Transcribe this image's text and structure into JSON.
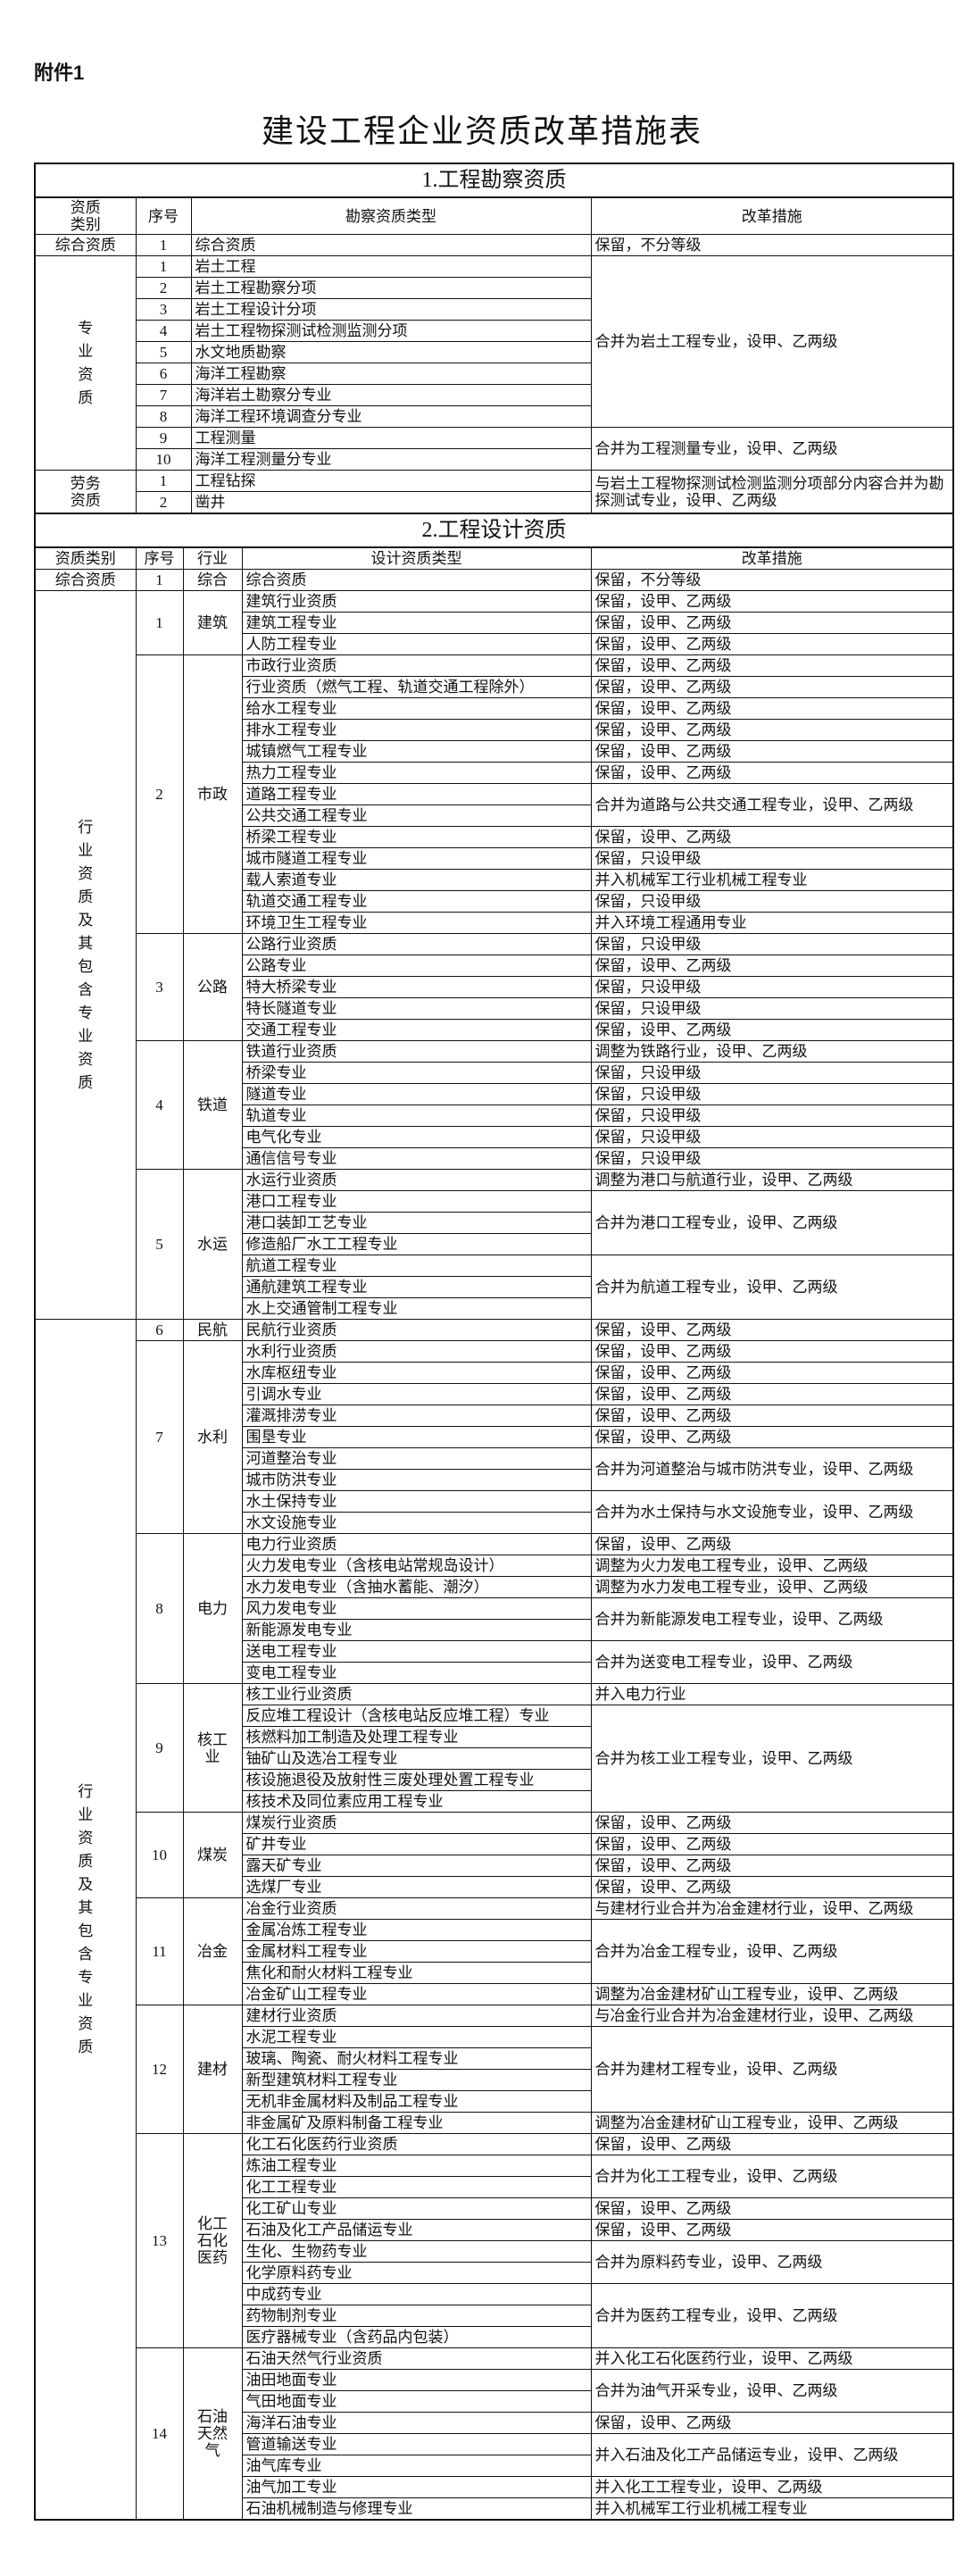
{
  "attachment": "附件1",
  "title": "建设工程企业资质改革措施表",
  "survey": {
    "title": "1.工程勘察资质",
    "headers": [
      "资质类别",
      "序号",
      "勘察资质类型",
      "改革措施"
    ],
    "groups": [
      {
        "category": "综合资质",
        "blocks": [
          {
            "measure": "保留，不分等级",
            "items": [
              {
                "no": 1,
                "type": "综合资质"
              }
            ]
          }
        ]
      },
      {
        "category": "专业资质",
        "blocks": [
          {
            "measure": "合并为岩土工程专业，设甲、乙两级",
            "items": [
              {
                "no": 1,
                "type": "岩土工程"
              },
              {
                "no": 2,
                "type": "岩土工程勘察分项"
              },
              {
                "no": 3,
                "type": "岩土工程设计分项"
              },
              {
                "no": 4,
                "type": "岩土工程物探测试检测监测分项"
              },
              {
                "no": 5,
                "type": "水文地质勘察"
              },
              {
                "no": 6,
                "type": "海洋工程勘察"
              },
              {
                "no": 7,
                "type": "海洋岩土勘察分专业"
              },
              {
                "no": 8,
                "type": "海洋工程环境调查分专业"
              }
            ]
          },
          {
            "measure": "合并为工程测量专业，设甲、乙两级",
            "items": [
              {
                "no": 9,
                "type": "工程测量"
              },
              {
                "no": 10,
                "type": "海洋工程测量分专业"
              }
            ]
          }
        ]
      },
      {
        "category": "劳务资质",
        "blocks": [
          {
            "measure": "与岩土工程物探测试检测监测分项部分内容合并为勘探测试专业，设甲、乙两级",
            "items": [
              {
                "no": 1,
                "type": "工程钻探"
              },
              {
                "no": 2,
                "type": "凿井"
              }
            ]
          }
        ]
      }
    ]
  },
  "design": {
    "title": "2.工程设计资质",
    "headers": [
      "资质类别",
      "序号",
      "行业",
      "设计资质类型",
      "改革措施"
    ],
    "groups": [
      {
        "category": "综合资质",
        "industries": [
          {
            "no": 1,
            "name": "综合",
            "blocks": [
              {
                "measure": "保留，不分等级",
                "types": [
                  "综合资质"
                ]
              }
            ]
          }
        ]
      },
      {
        "category": "行业资质及其包含专业资质",
        "industries": [
          {
            "no": 1,
            "name": "建筑",
            "blocks": [
              {
                "measure": "保留，设甲、乙两级",
                "types": [
                  "建筑行业资质"
                ]
              },
              {
                "measure": "保留，设甲、乙两级",
                "types": [
                  "建筑工程专业"
                ]
              },
              {
                "measure": "保留，设甲、乙两级",
                "types": [
                  "人防工程专业"
                ]
              }
            ]
          },
          {
            "no": 2,
            "name": "市政",
            "blocks": [
              {
                "measure": "保留，设甲、乙两级",
                "types": [
                  "市政行业资质"
                ]
              },
              {
                "measure": "保留，设甲、乙两级",
                "types": [
                  "行业资质（燃气工程、轨道交通工程除外）"
                ]
              },
              {
                "measure": "保留，设甲、乙两级",
                "types": [
                  "给水工程专业"
                ]
              },
              {
                "measure": "保留，设甲、乙两级",
                "types": [
                  "排水工程专业"
                ]
              },
              {
                "measure": "保留，设甲、乙两级",
                "types": [
                  "城镇燃气工程专业"
                ]
              },
              {
                "measure": "保留，设甲、乙两级",
                "types": [
                  "热力工程专业"
                ]
              },
              {
                "measure": "合并为道路与公共交通工程专业，设甲、乙两级",
                "types": [
                  "道路工程专业",
                  "公共交通工程专业"
                ]
              },
              {
                "measure": "保留，设甲、乙两级",
                "types": [
                  "桥梁工程专业"
                ]
              },
              {
                "measure": "保留，只设甲级",
                "types": [
                  "城市隧道工程专业"
                ]
              },
              {
                "measure": "并入机械军工行业机械工程专业",
                "types": [
                  "载人索道专业"
                ]
              },
              {
                "measure": "保留，只设甲级",
                "types": [
                  "轨道交通工程专业"
                ]
              },
              {
                "measure": "并入环境工程通用专业",
                "types": [
                  "环境卫生工程专业"
                ]
              }
            ]
          },
          {
            "no": 3,
            "name": "公路",
            "blocks": [
              {
                "measure": "保留，只设甲级",
                "types": [
                  "公路行业资质"
                ]
              },
              {
                "measure": "保留，设甲、乙两级",
                "types": [
                  "公路专业"
                ]
              },
              {
                "measure": "保留，只设甲级",
                "types": [
                  "特大桥梁专业"
                ]
              },
              {
                "measure": "保留，只设甲级",
                "types": [
                  "特长隧道专业"
                ]
              },
              {
                "measure": "保留，设甲、乙两级",
                "types": [
                  "交通工程专业"
                ]
              }
            ]
          },
          {
            "no": 4,
            "name": "铁道",
            "blocks": [
              {
                "measure": "调整为铁路行业，设甲、乙两级",
                "types": [
                  "铁道行业资质"
                ]
              },
              {
                "measure": "保留，只设甲级",
                "types": [
                  "桥梁专业"
                ]
              },
              {
                "measure": "保留，只设甲级",
                "types": [
                  "隧道专业"
                ]
              },
              {
                "measure": "保留，只设甲级",
                "types": [
                  "轨道专业"
                ]
              },
              {
                "measure": "保留，只设甲级",
                "types": [
                  "电气化专业"
                ]
              },
              {
                "measure": "保留，只设甲级",
                "types": [
                  "通信信号专业"
                ]
              }
            ]
          },
          {
            "no": 5,
            "name": "水运",
            "blocks": [
              {
                "measure": "调整为港口与航道行业，设甲、乙两级",
                "types": [
                  "水运行业资质"
                ]
              },
              {
                "measure": "合并为港口工程专业，设甲、乙两级",
                "types": [
                  "港口工程专业",
                  "港口装卸工艺专业",
                  "修造船厂水工工程专业"
                ]
              },
              {
                "measure": "合并为航道工程专业，设甲、乙两级",
                "types": [
                  "航道工程专业",
                  "通航建筑工程专业",
                  "水上交通管制工程专业"
                ]
              }
            ]
          }
        ]
      },
      {
        "category": "行业资质及其包含专业资质",
        "industries": [
          {
            "no": 6,
            "name": "民航",
            "blocks": [
              {
                "measure": "保留，设甲、乙两级",
                "types": [
                  "民航行业资质"
                ]
              }
            ]
          },
          {
            "no": 7,
            "name": "水利",
            "blocks": [
              {
                "measure": "保留，设甲、乙两级",
                "types": [
                  "水利行业资质"
                ]
              },
              {
                "measure": "保留，设甲、乙两级",
                "types": [
                  "水库枢纽专业"
                ]
              },
              {
                "measure": "保留，设甲、乙两级",
                "types": [
                  "引调水专业"
                ]
              },
              {
                "measure": "保留，设甲、乙两级",
                "types": [
                  "灌溉排涝专业"
                ]
              },
              {
                "measure": "保留，设甲、乙两级",
                "types": [
                  "围垦专业"
                ]
              },
              {
                "measure": "合并为河道整治与城市防洪专业，设甲、乙两级",
                "types": [
                  "河道整治专业",
                  "城市防洪专业"
                ]
              },
              {
                "measure": "合并为水土保持与水文设施专业，设甲、乙两级",
                "types": [
                  "水土保持专业",
                  "水文设施专业"
                ]
              }
            ]
          },
          {
            "no": 8,
            "name": "电力",
            "blocks": [
              {
                "measure": "保留，设甲、乙两级",
                "types": [
                  "电力行业资质"
                ]
              },
              {
                "measure": "调整为火力发电工程专业，设甲、乙两级",
                "types": [
                  "火力发电专业（含核电站常规岛设计）"
                ]
              },
              {
                "measure": "调整为水力发电工程专业，设甲、乙两级",
                "types": [
                  "水力发电专业（含抽水蓄能、潮汐）"
                ]
              },
              {
                "measure": "合并为新能源发电工程专业，设甲、乙两级",
                "types": [
                  "风力发电专业",
                  "新能源发电专业"
                ]
              },
              {
                "measure": "合并为送变电工程专业，设甲、乙两级",
                "types": [
                  "送电工程专业",
                  "变电工程专业"
                ]
              }
            ]
          },
          {
            "no": 9,
            "name": "核工业",
            "blocks": [
              {
                "measure": "并入电力行业",
                "types": [
                  "核工业行业资质"
                ]
              },
              {
                "measure": "合并为核工业工程专业，设甲、乙两级",
                "types": [
                  "反应堆工程设计（含核电站反应堆工程）专业",
                  "核燃料加工制造及处理工程专业",
                  "铀矿山及选冶工程专业",
                  "核设施退役及放射性三废处理处置工程专业",
                  "核技术及同位素应用工程专业"
                ]
              }
            ]
          },
          {
            "no": 10,
            "name": "煤炭",
            "blocks": [
              {
                "measure": "保留，设甲、乙两级",
                "types": [
                  "煤炭行业资质"
                ]
              },
              {
                "measure": "保留，设甲、乙两级",
                "types": [
                  "矿井专业"
                ]
              },
              {
                "measure": "保留，设甲、乙两级",
                "types": [
                  "露天矿专业"
                ]
              },
              {
                "measure": "保留，设甲、乙两级",
                "types": [
                  "选煤厂专业"
                ]
              }
            ]
          },
          {
            "no": 11,
            "name": "冶金",
            "blocks": [
              {
                "measure": "与建材行业合并为冶金建材行业，设甲、乙两级",
                "types": [
                  "冶金行业资质"
                ]
              },
              {
                "measure": "合并为冶金工程专业，设甲、乙两级",
                "types": [
                  "金属冶炼工程专业",
                  "金属材料工程专业",
                  "焦化和耐火材料工程专业"
                ]
              },
              {
                "measure": "调整为冶金建材矿山工程专业，设甲、乙两级",
                "types": [
                  "冶金矿山工程专业"
                ]
              }
            ]
          },
          {
            "no": 12,
            "name": "建材",
            "blocks": [
              {
                "measure": "与冶金行业合并为冶金建材行业，设甲、乙两级",
                "types": [
                  "建材行业资质"
                ]
              },
              {
                "measure": "合并为建材工程专业，设甲、乙两级",
                "types": [
                  "水泥工程专业",
                  "玻璃、陶瓷、耐火材料工程专业",
                  "新型建筑材料工程专业",
                  "无机非金属材料及制品工程专业"
                ]
              },
              {
                "measure": "调整为冶金建材矿山工程专业，设甲、乙两级",
                "types": [
                  "非金属矿及原料制备工程专业"
                ]
              }
            ]
          },
          {
            "no": 13,
            "name": "化工石化医药",
            "blocks": [
              {
                "measure": "保留，设甲、乙两级",
                "types": [
                  "化工石化医药行业资质"
                ]
              },
              {
                "measure": "合并为化工工程专业，设甲、乙两级",
                "types": [
                  "炼油工程专业",
                  "化工工程专业"
                ]
              },
              {
                "measure": "保留，设甲、乙两级",
                "types": [
                  "化工矿山专业"
                ]
              },
              {
                "measure": "保留，设甲、乙两级",
                "types": [
                  "石油及化工产品储运专业"
                ]
              },
              {
                "measure": "合并为原料药专业，设甲、乙两级",
                "types": [
                  "生化、生物药专业",
                  "化学原料药专业"
                ]
              },
              {
                "measure": "合并为医药工程专业，设甲、乙两级",
                "types": [
                  "中成药专业",
                  "药物制剂专业",
                  "医疗器械专业（含药品内包装）"
                ]
              }
            ]
          },
          {
            "no": 14,
            "name": "石油天然气",
            "blocks": [
              {
                "measure": "并入化工石化医药行业，设甲、乙两级",
                "types": [
                  "石油天然气行业资质"
                ]
              },
              {
                "measure": "合并为油气开采专业，设甲、乙两级",
                "types": [
                  "油田地面专业",
                  "气田地面专业"
                ]
              },
              {
                "measure": "保留，设甲、乙两级",
                "types": [
                  "海洋石油专业"
                ]
              },
              {
                "measure": "并入石油及化工产品储运专业，设甲、乙两级",
                "types": [
                  "管道输送专业",
                  "油气库专业"
                ]
              },
              {
                "measure": "并入化工工程专业，设甲、乙两级",
                "types": [
                  "油气加工专业"
                ]
              },
              {
                "measure": "并入机械军工行业机械工程专业",
                "types": [
                  "石油机械制造与修理专业"
                ]
              }
            ]
          }
        ]
      }
    ]
  }
}
